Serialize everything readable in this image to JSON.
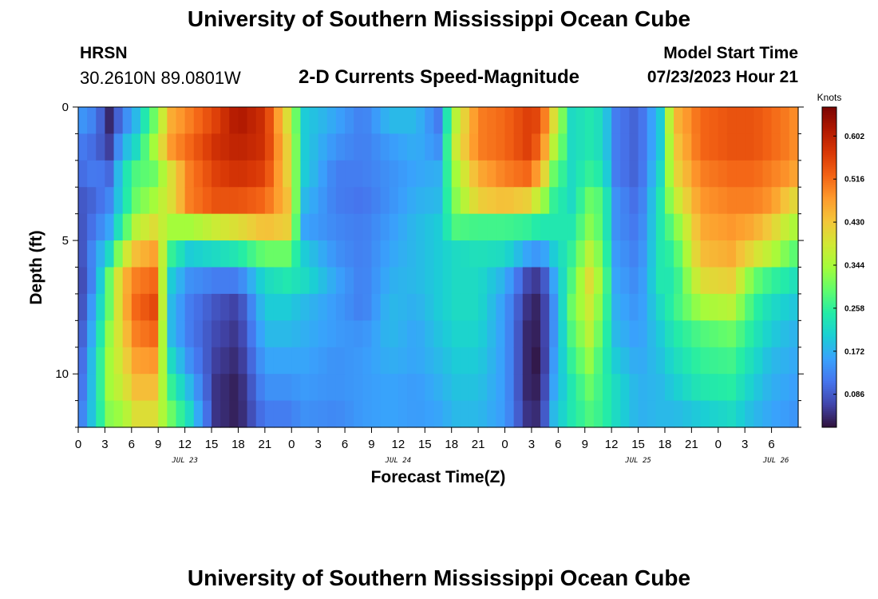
{
  "header": {
    "title": "University of Southern Mississippi Ocean Cube",
    "station": "HRSN",
    "coords": "30.2610N  89.0801W",
    "subtitle": "2-D Currents Speed-Magnitude",
    "model_start_label": "Model Start Time",
    "model_start_value": "07/23/2023 Hour 21"
  },
  "footer": {
    "title": "University of Southern Mississippi Ocean Cube"
  },
  "chart_data": {
    "type": "heatmap",
    "title": "2-D Currents Speed-Magnitude",
    "xlabel": "Forecast Time(Z)",
    "ylabel": "Depth (ft)",
    "x_hours": [
      0,
      81
    ],
    "x_tick_labels": [
      "0",
      "3",
      "6",
      "9",
      "12",
      "15",
      "18",
      "21",
      "0",
      "3",
      "6",
      "9",
      "12",
      "15",
      "18",
      "21",
      "0",
      "3",
      "6",
      "9",
      "12",
      "15",
      "18",
      "21",
      "0",
      "3",
      "6"
    ],
    "date_labels": [
      {
        "label": "JUL 23",
        "hour": 12
      },
      {
        "label": "JUL 24",
        "hour": 36
      },
      {
        "label": "JUL 25",
        "hour": 63
      },
      {
        "label": "JUL 26",
        "hour": 78.5
      }
    ],
    "ylim": [
      0,
      12
    ],
    "y_ticks": [
      "0",
      "5",
      "10"
    ],
    "y_tick_values": [
      0,
      5,
      10
    ],
    "colorbar": {
      "unit": "Knots",
      "min": 0.02,
      "max": 0.66,
      "ticks": [
        "0.086",
        "0.172",
        "0.258",
        "0.344",
        "0.430",
        "0.516",
        "0.602"
      ],
      "tick_values": [
        0.086,
        0.172,
        0.258,
        0.344,
        0.43,
        0.516,
        0.602
      ],
      "colors": [
        "#30123b",
        "#4145ab",
        "#4675ed",
        "#39a2fc",
        "#1bcfd4",
        "#24eca6",
        "#61fc6c",
        "#a4fc3b",
        "#d1e834",
        "#f3c63a",
        "#fe9b2d",
        "#f36315",
        "#d93806",
        "#b11901",
        "#7a0402"
      ]
    },
    "depth_levels": 12,
    "time_knots": [
      {
        "hour": 0,
        "values": [
          0.15,
          0.12,
          0.1,
          0.08,
          0.07,
          0.06,
          0.05,
          0.05,
          0.06,
          0.07,
          0.08,
          0.1
        ]
      },
      {
        "hour": 2,
        "values": [
          0.12,
          0.1,
          0.12,
          0.1,
          0.12,
          0.15,
          0.15,
          0.18,
          0.2,
          0.22,
          0.22,
          0.22
        ]
      },
      {
        "hour": 3.5,
        "values": [
          0.04,
          0.06,
          0.1,
          0.13,
          0.16,
          0.22,
          0.3,
          0.3,
          0.33,
          0.34,
          0.34,
          0.32
        ]
      },
      {
        "hour": 5,
        "values": [
          0.12,
          0.17,
          0.22,
          0.22,
          0.26,
          0.36,
          0.44,
          0.44,
          0.42,
          0.4,
          0.38,
          0.34
        ]
      },
      {
        "hour": 6.5,
        "values": [
          0.18,
          0.22,
          0.28,
          0.3,
          0.36,
          0.44,
          0.5,
          0.52,
          0.5,
          0.47,
          0.44,
          0.4
        ]
      },
      {
        "hour": 8.5,
        "values": [
          0.3,
          0.34,
          0.3,
          0.34,
          0.4,
          0.47,
          0.52,
          0.55,
          0.52,
          0.48,
          0.44,
          0.4
        ]
      },
      {
        "hour": 10.5,
        "values": [
          0.46,
          0.48,
          0.4,
          0.4,
          0.34,
          0.26,
          0.2,
          0.18,
          0.18,
          0.22,
          0.26,
          0.3
        ]
      },
      {
        "hour": 12.5,
        "values": [
          0.5,
          0.52,
          0.5,
          0.5,
          0.34,
          0.2,
          0.14,
          0.12,
          0.12,
          0.14,
          0.18,
          0.22
        ]
      },
      {
        "hour": 15.5,
        "values": [
          0.56,
          0.58,
          0.56,
          0.54,
          0.38,
          0.22,
          0.12,
          0.08,
          0.07,
          0.06,
          0.05,
          0.05
        ]
      },
      {
        "hour": 18,
        "values": [
          0.62,
          0.6,
          0.58,
          0.54,
          0.4,
          0.24,
          0.12,
          0.06,
          0.05,
          0.04,
          0.03,
          0.03
        ]
      },
      {
        "hour": 21,
        "values": [
          0.58,
          0.58,
          0.56,
          0.52,
          0.44,
          0.3,
          0.22,
          0.2,
          0.18,
          0.16,
          0.14,
          0.12
        ]
      },
      {
        "hour": 23.5,
        "values": [
          0.4,
          0.42,
          0.42,
          0.44,
          0.42,
          0.3,
          0.24,
          0.2,
          0.18,
          0.16,
          0.14,
          0.12
        ]
      },
      {
        "hour": 25.5,
        "values": [
          0.2,
          0.2,
          0.2,
          0.18,
          0.16,
          0.2,
          0.22,
          0.18,
          0.17,
          0.16,
          0.15,
          0.14
        ]
      },
      {
        "hour": 29,
        "values": [
          0.16,
          0.14,
          0.12,
          0.12,
          0.13,
          0.14,
          0.16,
          0.15,
          0.15,
          0.14,
          0.14,
          0.13
        ]
      },
      {
        "hour": 32,
        "values": [
          0.12,
          0.12,
          0.12,
          0.11,
          0.12,
          0.12,
          0.12,
          0.12,
          0.14,
          0.15,
          0.15,
          0.15
        ]
      },
      {
        "hour": 35,
        "values": [
          0.18,
          0.15,
          0.14,
          0.14,
          0.15,
          0.16,
          0.17,
          0.18,
          0.18,
          0.17,
          0.16,
          0.16
        ]
      },
      {
        "hour": 38,
        "values": [
          0.18,
          0.17,
          0.16,
          0.17,
          0.18,
          0.18,
          0.18,
          0.17,
          0.16,
          0.16,
          0.15,
          0.15
        ]
      },
      {
        "hour": 40.5,
        "values": [
          0.12,
          0.14,
          0.17,
          0.18,
          0.2,
          0.2,
          0.2,
          0.2,
          0.19,
          0.18,
          0.17,
          0.16
        ]
      },
      {
        "hour": 42.5,
        "values": [
          0.36,
          0.38,
          0.34,
          0.32,
          0.28,
          0.22,
          0.22,
          0.22,
          0.21,
          0.2,
          0.19,
          0.18
        ]
      },
      {
        "hour": 45,
        "values": [
          0.5,
          0.5,
          0.46,
          0.42,
          0.27,
          0.23,
          0.22,
          0.22,
          0.21,
          0.2,
          0.19,
          0.18
        ]
      },
      {
        "hour": 48,
        "values": [
          0.52,
          0.52,
          0.5,
          0.44,
          0.27,
          0.22,
          0.17,
          0.15,
          0.15,
          0.15,
          0.15,
          0.15
        ]
      },
      {
        "hour": 50.5,
        "values": [
          0.56,
          0.56,
          0.52,
          0.42,
          0.26,
          0.16,
          0.07,
          0.05,
          0.04,
          0.04,
          0.04,
          0.05
        ]
      },
      {
        "hour": 52,
        "values": [
          0.55,
          0.52,
          0.46,
          0.36,
          0.24,
          0.14,
          0.05,
          0.03,
          0.03,
          0.02,
          0.03,
          0.04
        ]
      },
      {
        "hour": 53.5,
        "values": [
          0.4,
          0.36,
          0.3,
          0.26,
          0.24,
          0.2,
          0.16,
          0.14,
          0.14,
          0.15,
          0.16,
          0.18
        ]
      },
      {
        "hour": 55.5,
        "values": [
          0.22,
          0.22,
          0.22,
          0.22,
          0.24,
          0.26,
          0.28,
          0.3,
          0.28,
          0.26,
          0.24,
          0.24
        ]
      },
      {
        "hour": 57.5,
        "values": [
          0.24,
          0.24,
          0.26,
          0.3,
          0.32,
          0.36,
          0.4,
          0.38,
          0.36,
          0.33,
          0.3,
          0.28
        ]
      },
      {
        "hour": 59,
        "values": [
          0.22,
          0.22,
          0.24,
          0.28,
          0.28,
          0.3,
          0.32,
          0.3,
          0.28,
          0.26,
          0.26,
          0.26
        ]
      },
      {
        "hour": 60.5,
        "values": [
          0.12,
          0.12,
          0.12,
          0.14,
          0.14,
          0.15,
          0.16,
          0.17,
          0.18,
          0.2,
          0.22,
          0.22
        ]
      },
      {
        "hour": 63,
        "values": [
          0.09,
          0.09,
          0.09,
          0.1,
          0.11,
          0.12,
          0.13,
          0.14,
          0.15,
          0.16,
          0.17,
          0.17
        ]
      },
      {
        "hour": 65.5,
        "values": [
          0.2,
          0.2,
          0.22,
          0.24,
          0.24,
          0.24,
          0.24,
          0.22,
          0.2,
          0.19,
          0.18,
          0.18
        ]
      },
      {
        "hour": 67,
        "values": [
          0.44,
          0.42,
          0.4,
          0.36,
          0.3,
          0.26,
          0.24,
          0.26,
          0.24,
          0.22,
          0.2,
          0.18
        ]
      },
      {
        "hour": 70,
        "values": [
          0.52,
          0.52,
          0.5,
          0.48,
          0.46,
          0.44,
          0.4,
          0.34,
          0.28,
          0.26,
          0.24,
          0.2
        ]
      },
      {
        "hour": 73.5,
        "values": [
          0.54,
          0.54,
          0.52,
          0.5,
          0.48,
          0.46,
          0.42,
          0.36,
          0.3,
          0.27,
          0.25,
          0.22
        ]
      },
      {
        "hour": 76,
        "values": [
          0.54,
          0.54,
          0.52,
          0.5,
          0.46,
          0.4,
          0.3,
          0.26,
          0.24,
          0.22,
          0.2,
          0.18
        ]
      },
      {
        "hour": 78,
        "values": [
          0.52,
          0.52,
          0.5,
          0.48,
          0.42,
          0.36,
          0.26,
          0.22,
          0.2,
          0.18,
          0.17,
          0.16
        ]
      },
      {
        "hour": 80,
        "values": [
          0.5,
          0.5,
          0.48,
          0.42,
          0.36,
          0.3,
          0.24,
          0.2,
          0.18,
          0.17,
          0.16,
          0.15
        ]
      },
      {
        "hour": 81,
        "values": [
          0.48,
          0.48,
          0.46,
          0.4,
          0.34,
          0.28,
          0.22,
          0.19,
          0.17,
          0.16,
          0.15,
          0.14
        ]
      }
    ]
  }
}
